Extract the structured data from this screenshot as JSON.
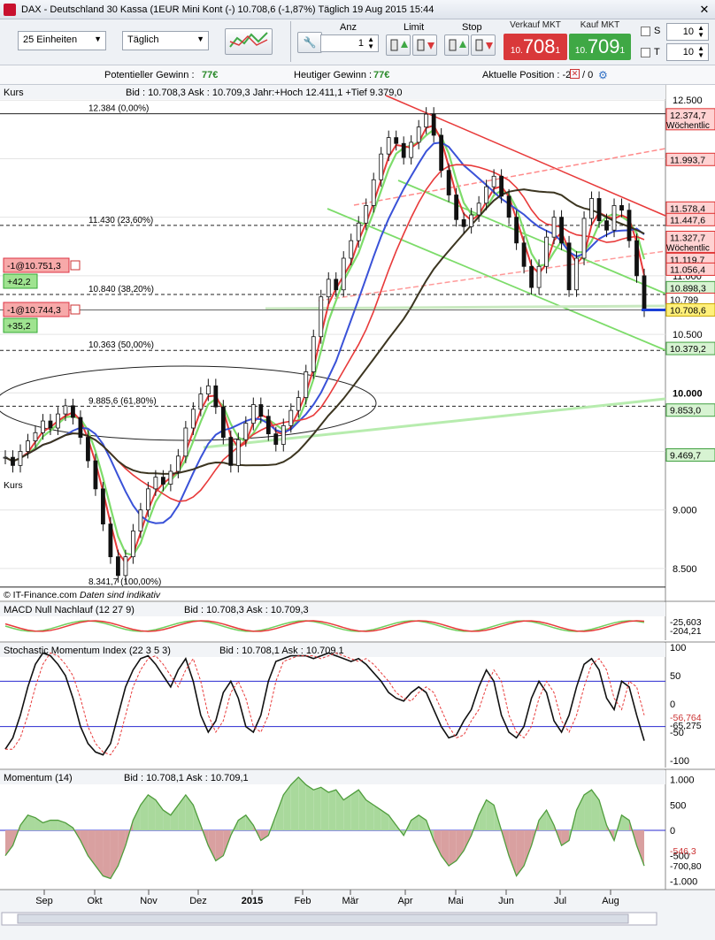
{
  "window": {
    "title": "DAX - Deutschland 30 Kassa (1EUR Mini Kont (-)   10.708,6 (-1,87%)   Täglich  19 Aug 2015 15:44",
    "close_glyph": "✕"
  },
  "toolbar": {
    "units_select": "25 Einheiten",
    "period_select": "Täglich",
    "anz_label": "Anz",
    "anz_value": "1",
    "limit_label": "Limit",
    "stop_label": "Stop",
    "verkauf_label": "Verkauf MKT",
    "verkauf_big": "708",
    "verkauf_prefix": "10.",
    "verkauf_suffix": "1",
    "kauf_label": "Kauf MKT",
    "kauf_big": "709",
    "kauf_prefix": "10.",
    "kauf_suffix": "1",
    "s_label": "S",
    "s_value": "10",
    "t_label": "T",
    "t_value": "10",
    "colors": {
      "sell": "#d9383a",
      "buy": "#3fa845"
    }
  },
  "status": {
    "pot_gewinn_label": "Potentieller Gewinn :",
    "pot_gewinn_value": "77€",
    "heut_gewinn_label": "Heutiger Gewinn :",
    "heut_gewinn_value": "77€",
    "position_label": "Aktuelle Position : -2",
    "position_extra": "/ 0"
  },
  "chart_data": [
    {
      "type": "line",
      "name": "Kurs",
      "header": "Bid : 10.708,3 Ask : 10.709,3 Jahr:+Hoch 12.411,1 +Tief 9.379,0",
      "label": "Kurs",
      "copyright": "© IT-Finance.com",
      "note": "Daten sind indikativ",
      "yticks": [
        "12.500",
        "12.000",
        "11.500",
        "11.000",
        "10.500",
        "10.000",
        "9.500",
        "9.000",
        "8.500"
      ],
      "ylim": [
        8250,
        12600
      ],
      "xticks": [
        "Sep",
        "Okt",
        "Nov",
        "Dez",
        "2015",
        "Feb",
        "Mär",
        "Apr",
        "Mai",
        "Jun",
        "Jul",
        "Aug"
      ],
      "close": [
        9450,
        9380,
        9500,
        9590,
        9660,
        9760,
        9700,
        9820,
        9890,
        9790,
        9620,
        9420,
        9180,
        8880,
        8600,
        8440,
        8600,
        8820,
        9000,
        9180,
        9280,
        9220,
        9330,
        9460,
        9700,
        9860,
        9990,
        10060,
        9880,
        9620,
        9380,
        9600,
        9740,
        9900,
        9800,
        9650,
        9560,
        9720,
        9850,
        9960,
        10180,
        10480,
        10820,
        10970,
        10880,
        11150,
        11300,
        11450,
        11600,
        11820,
        12040,
        12180,
        12130,
        12010,
        12140,
        12270,
        12380,
        12200,
        11900,
        11690,
        11480,
        11420,
        11520,
        11620,
        11760,
        11850,
        11680,
        11500,
        11280,
        11080,
        10900,
        11080,
        11330,
        11500,
        11280,
        10880,
        11150,
        11490,
        11660,
        11470,
        11390,
        11600,
        11560,
        11300,
        11000,
        10708
      ],
      "fibonacci": [
        {
          "label": "12.384 (0,00%)",
          "value": 12384
        },
        {
          "label": "11.430 (23,60%)",
          "value": 11430
        },
        {
          "label": "10.840 (38,20%)",
          "value": 10840
        },
        {
          "label": "10.363 (50,00%)",
          "value": 10363
        },
        {
          "label": "9.885,6 (61,80%)",
          "value": 9885.6
        },
        {
          "label": "8.341,7 (100,00%)",
          "value": 8341.7
        }
      ],
      "right_labels": [
        {
          "text": "12.374,7",
          "sub": "Wöchentlic",
          "value": 12374.7,
          "color": "#ffd2d2",
          "border": "#e03030"
        },
        {
          "text": "11.993,7",
          "value": 11993.7,
          "color": "#ffd2d2",
          "border": "#e03030"
        },
        {
          "text": "11.578,4",
          "value": 11578.4,
          "color": "#ffd2d2",
          "border": "#e03030"
        },
        {
          "text": "11.447,6",
          "value": 11480,
          "color": "#ffd2d2",
          "border": "#e03030"
        },
        {
          "text": "11.327,7",
          "sub": "Wöchentlic",
          "value": 11327.7,
          "color": "#ffd2d2",
          "border": "#e03030"
        },
        {
          "text": "11.119,7",
          "value": 11140,
          "color": "#ffd2d2",
          "border": "#e03030"
        },
        {
          "text": "11.056,4",
          "value": 11056.4,
          "color": "#ffd2d2",
          "border": "#e03030"
        },
        {
          "text": "10.898,3",
          "value": 10898.3,
          "color": "#d7f3d2",
          "border": "#40a040"
        },
        {
          "text": "10.799",
          "value": 10799,
          "color": "#ffffff",
          "border": "#e03030"
        },
        {
          "text": "10.708,6",
          "value": 10708.6,
          "color": "#fff07a",
          "border": "#c9a800"
        },
        {
          "text": "10.379,2",
          "value": 10379.2,
          "color": "#d7f3d2",
          "border": "#40a040"
        },
        {
          "text": "9.853,0",
          "value": 9853,
          "color": "#d7f3d2",
          "border": "#40a040"
        },
        {
          "text": "9.469,7",
          "value": 9469.7,
          "color": "#d7f3d2",
          "border": "#40a040"
        }
      ],
      "orders": [
        {
          "label": "-1@10.751,3",
          "pnl": "+42,2",
          "value": 10751.3
        },
        {
          "label": "-1@10.744,3",
          "pnl": "+35,2",
          "value": 10744.3
        }
      ],
      "grid": true
    },
    {
      "type": "line",
      "name": "MACD Null Nachlauf (12 27 9)",
      "header": "Bid : 10.708,3 Ask : 10.709,3",
      "values_labels": [
        "-25,603",
        "-204,21"
      ]
    },
    {
      "type": "line",
      "name": "Stochastic Momentum Index (22 3 5 3)",
      "header": "Bid : 10.708,1 Ask : 10.709,1",
      "yticks": [
        "100",
        "50",
        "0",
        "-50",
        "-100"
      ],
      "ylim": [
        -100,
        100
      ],
      "levels": [
        40,
        -40
      ],
      "last_labels": [
        "-56,764",
        "-65,275"
      ],
      "values": [
        -80,
        -60,
        -20,
        30,
        70,
        90,
        85,
        70,
        50,
        10,
        -40,
        -70,
        -85,
        -90,
        -70,
        -20,
        30,
        60,
        80,
        85,
        70,
        50,
        30,
        60,
        80,
        40,
        -20,
        -50,
        -30,
        20,
        40,
        10,
        -40,
        -50,
        -20,
        40,
        75,
        80,
        85,
        85,
        85,
        80,
        85,
        90,
        85,
        80,
        75,
        80,
        70,
        55,
        40,
        20,
        10,
        5,
        20,
        30,
        20,
        -10,
        -40,
        -60,
        -55,
        -30,
        -10,
        30,
        60,
        40,
        -20,
        -50,
        -60,
        -40,
        10,
        40,
        20,
        -30,
        -50,
        -20,
        30,
        70,
        80,
        60,
        10,
        -10,
        40,
        30,
        -20,
        -65
      ]
    },
    {
      "type": "area",
      "name": "Momentum (14)",
      "header": "Bid : 10.708,1 Ask : 10.709,1",
      "yticks": [
        "1.000",
        "500",
        "0",
        "-500",
        "-1.000"
      ],
      "ylim": [
        -1100,
        1100
      ],
      "last_labels": [
        "-546,3",
        "-700,80"
      ],
      "values": [
        -500,
        -300,
        100,
        300,
        250,
        150,
        200,
        200,
        150,
        50,
        -200,
        -500,
        -700,
        -900,
        -950,
        -700,
        -300,
        200,
        500,
        700,
        600,
        400,
        300,
        500,
        700,
        500,
        100,
        -300,
        -600,
        -500,
        -100,
        200,
        300,
        100,
        -200,
        -100,
        300,
        700,
        900,
        1050,
        900,
        800,
        850,
        750,
        800,
        600,
        700,
        800,
        600,
        500,
        400,
        300,
        100,
        -100,
        200,
        300,
        200,
        -200,
        -500,
        -700,
        -600,
        -400,
        -100,
        300,
        600,
        500,
        0,
        -500,
        -900,
        -700,
        -300,
        200,
        400,
        100,
        -300,
        -200,
        400,
        700,
        800,
        600,
        100,
        -200,
        300,
        200,
        -300,
        -700
      ]
    }
  ]
}
